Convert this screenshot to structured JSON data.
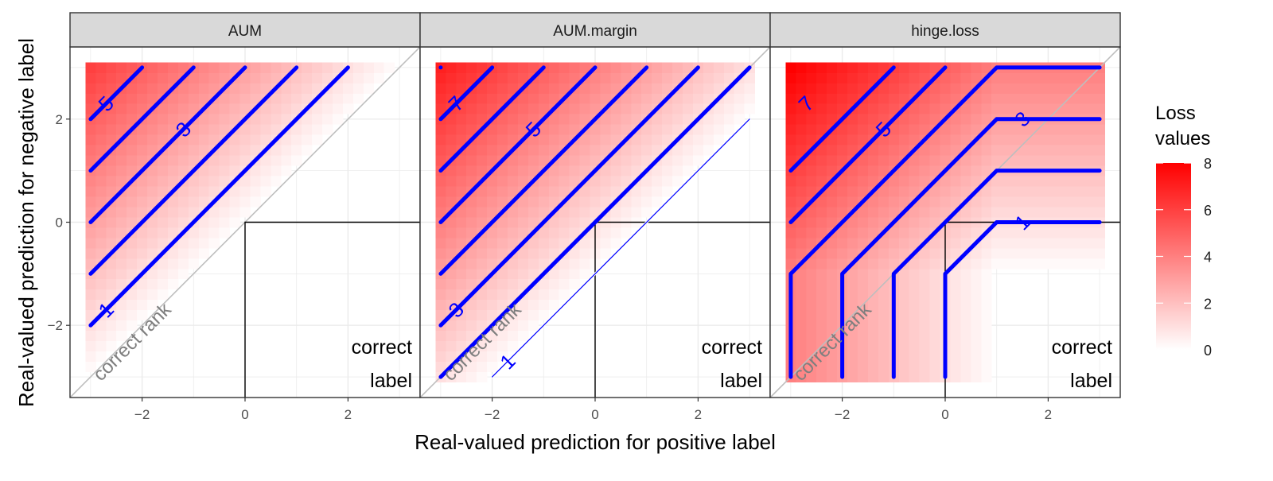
{
  "chart_data": {
    "type": "heatmap",
    "xlabel": "Real-valued prediction for positive label",
    "ylabel": "Real-valued prediction for negative label",
    "xlim": [
      -3.4,
      3.4
    ],
    "ylim": [
      -3.4,
      3.4
    ],
    "x_ticks": [
      -2,
      0,
      2
    ],
    "y_ticks": [
      -2,
      0,
      2
    ],
    "grid": true,
    "legend": {
      "title_lines": [
        "Loss",
        "values"
      ],
      "min": 0,
      "max": 8,
      "ticks": [
        0,
        2,
        4,
        6,
        8
      ],
      "low_color": "#ffffff",
      "high_color": "#ff0000",
      "position": "right"
    },
    "heatmap_grid": {
      "x_min": -3,
      "x_max": 3,
      "y_min": -3,
      "y_max": 3,
      "step": 0.2
    },
    "colors": {
      "contour": "#0000ff",
      "diagonal": "#bebebe",
      "strip_background": "#d9d9d9",
      "gridline": "#ebebeb",
      "annotation_text": "#7f7f7f"
    },
    "annotations": {
      "diagonal_label": "correct rank",
      "corner_label_lines": [
        "correct",
        "label"
      ]
    },
    "panels": [
      {
        "name": "AUM",
        "contour_levels": [
          1,
          2,
          3,
          4,
          5
        ],
        "contour_labels": [
          {
            "text": "1",
            "x": -2.7,
            "y": -1.7
          },
          {
            "text": "3",
            "x": -1.2,
            "y": 1.8
          },
          {
            "text": "5",
            "x": -2.7,
            "y": 2.3
          }
        ]
      },
      {
        "name": "AUM.margin",
        "contour_levels": [
          0,
          1,
          2,
          3,
          4,
          5,
          6,
          7
        ],
        "contour_labels": [
          {
            "text": "1",
            "x": -1.7,
            "y": -2.7
          },
          {
            "text": "3",
            "x": -2.7,
            "y": -1.7
          },
          {
            "text": "5",
            "x": -1.2,
            "y": 1.8
          },
          {
            "text": "7",
            "x": -2.7,
            "y": 2.3
          }
        ]
      },
      {
        "name": "hinge.loss",
        "contour_levels": [
          0,
          1,
          2,
          3,
          4,
          5,
          6,
          7
        ],
        "contour_labels": [
          {
            "text": "1",
            "x": 1.5,
            "y": 0.0
          },
          {
            "text": "3",
            "x": 1.5,
            "y": 2.0
          },
          {
            "text": "5",
            "x": -1.2,
            "y": 1.8
          },
          {
            "text": "7",
            "x": -2.7,
            "y": 2.3
          }
        ]
      }
    ]
  }
}
